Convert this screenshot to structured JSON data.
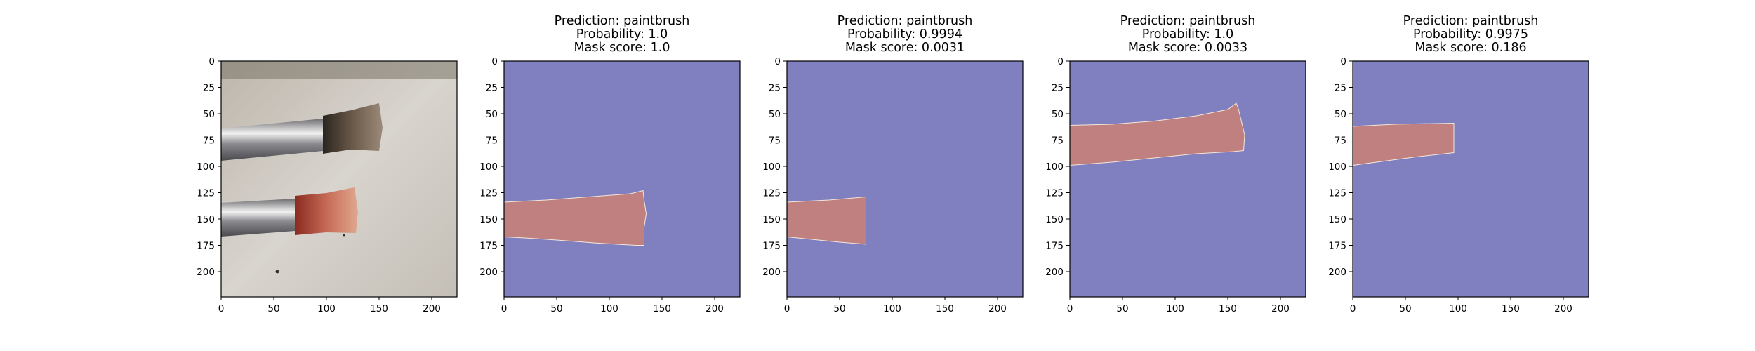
{
  "panels": [
    {
      "kind": "photo",
      "title": [],
      "photo_description_icon": "paintbrushes-photo"
    },
    {
      "kind": "mask",
      "title": [
        "Prediction: paintbrush",
        "Probability: 1.0",
        "Mask score: 1.0"
      ],
      "mask_polygon": [
        [
          0,
          134
        ],
        [
          40,
          132
        ],
        [
          80,
          129
        ],
        [
          120,
          126
        ],
        [
          132,
          123
        ],
        [
          133,
          132
        ],
        [
          135,
          145
        ],
        [
          133,
          158
        ],
        [
          133,
          175
        ],
        [
          125,
          175
        ],
        [
          90,
          173
        ],
        [
          50,
          170
        ],
        [
          20,
          168
        ],
        [
          0,
          167
        ]
      ]
    },
    {
      "kind": "mask",
      "title": [
        "Prediction: paintbrush",
        "Probability: 0.9994",
        "Mask score: 0.0031"
      ],
      "mask_polygon": [
        [
          0,
          134
        ],
        [
          40,
          132
        ],
        [
          75,
          129
        ],
        [
          75,
          174
        ],
        [
          50,
          172
        ],
        [
          20,
          169
        ],
        [
          0,
          167
        ]
      ]
    },
    {
      "kind": "mask",
      "title": [
        "Prediction: paintbrush",
        "Probability: 1.0",
        "Mask score: 0.0033"
      ],
      "mask_polygon": [
        [
          0,
          61
        ],
        [
          40,
          60
        ],
        [
          80,
          57
        ],
        [
          120,
          52
        ],
        [
          150,
          46
        ],
        [
          158,
          40
        ],
        [
          160,
          45
        ],
        [
          166,
          70
        ],
        [
          165,
          85
        ],
        [
          155,
          86
        ],
        [
          120,
          88
        ],
        [
          80,
          92
        ],
        [
          40,
          96
        ],
        [
          0,
          99
        ]
      ]
    },
    {
      "kind": "mask",
      "title": [
        "Prediction: paintbrush",
        "Probability: 0.9975",
        "Mask score: 0.186"
      ],
      "mask_polygon": [
        [
          0,
          62
        ],
        [
          40,
          60
        ],
        [
          96,
          59
        ],
        [
          96,
          87
        ],
        [
          60,
          91
        ],
        [
          30,
          95
        ],
        [
          0,
          99
        ]
      ]
    }
  ],
  "axes": {
    "x_ticks": [
      0,
      50,
      100,
      150,
      200
    ],
    "y_ticks": [
      0,
      25,
      50,
      75,
      100,
      125,
      150,
      175,
      200
    ],
    "range": [
      0,
      224
    ]
  },
  "colors": {
    "background": "#8080c0",
    "mask": "#c08080",
    "axis": "#000000"
  }
}
